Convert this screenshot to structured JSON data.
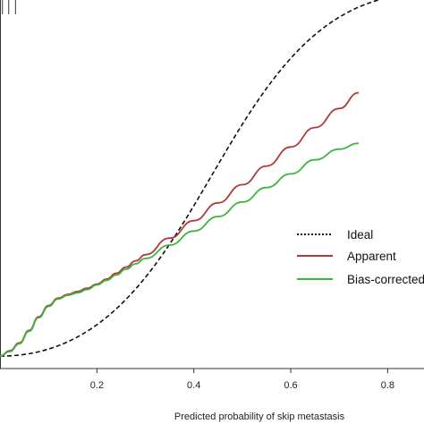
{
  "chart_data": {
    "type": "line",
    "title": "",
    "xlabel": "Predicted probability of skip metastasis",
    "ylabel": "",
    "xlim": [
      0.0,
      0.875
    ],
    "ylim": [
      -0.03,
      0.86
    ],
    "grid": false,
    "legend_position": "right",
    "x_ticks": [
      "0.2",
      "0.4",
      "0.6",
      "0.8"
    ],
    "x_tick_values": [
      0.2,
      0.4,
      0.6,
      0.8
    ],
    "rug_x": [
      0.005,
      0.018,
      0.032
    ],
    "series": [
      {
        "name": "Ideal",
        "color": "#111111",
        "dash": "dotted",
        "x": [
          0.0,
          0.875
        ],
        "y": [
          0.0,
          0.875
        ]
      },
      {
        "name": "Apparent",
        "color": "#b03a3a",
        "dash": "solid",
        "x": [
          0.0,
          0.02,
          0.04,
          0.06,
          0.08,
          0.1,
          0.12,
          0.14,
          0.16,
          0.18,
          0.2,
          0.22,
          0.24,
          0.26,
          0.28,
          0.3,
          0.35,
          0.4,
          0.45,
          0.5,
          0.55,
          0.6,
          0.65,
          0.7,
          0.74
        ],
        "y": [
          0.0,
          0.013,
          0.032,
          0.062,
          0.095,
          0.122,
          0.14,
          0.149,
          0.156,
          0.164,
          0.174,
          0.186,
          0.2,
          0.215,
          0.23,
          0.245,
          0.285,
          0.327,
          0.37,
          0.414,
          0.459,
          0.505,
          0.552,
          0.598,
          0.636
        ]
      },
      {
        "name": "Bias-corrected",
        "color": "#3cb53c",
        "dash": "solid",
        "x": [
          0.0,
          0.02,
          0.04,
          0.06,
          0.08,
          0.1,
          0.12,
          0.14,
          0.16,
          0.18,
          0.2,
          0.22,
          0.24,
          0.26,
          0.28,
          0.3,
          0.35,
          0.4,
          0.45,
          0.5,
          0.55,
          0.6,
          0.65,
          0.7,
          0.74
        ],
        "y": [
          0.0,
          0.011,
          0.03,
          0.06,
          0.093,
          0.12,
          0.138,
          0.147,
          0.153,
          0.161,
          0.172,
          0.183,
          0.196,
          0.21,
          0.223,
          0.236,
          0.268,
          0.302,
          0.337,
          0.372,
          0.407,
          0.44,
          0.474,
          0.5,
          0.514
        ]
      }
    ],
    "legend": [
      {
        "label": "Ideal",
        "color": "#111111",
        "dash": "dotted"
      },
      {
        "label": "Apparent",
        "color": "#b03a3a",
        "dash": "solid"
      },
      {
        "label": "Bias-corrected",
        "color": "#3cb53c",
        "dash": "solid"
      }
    ]
  }
}
